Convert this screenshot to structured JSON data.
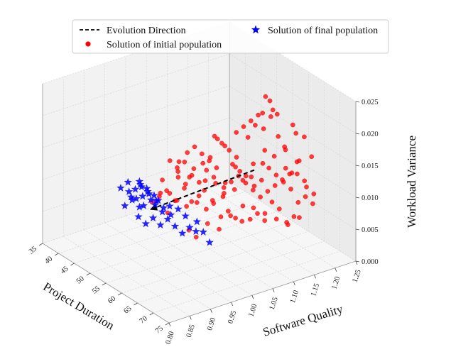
{
  "chart_data": {
    "type": "scatter3d",
    "title": "",
    "xlabel": "Project Duration",
    "ylabel": "Software Quality",
    "zlabel": "Workload Variance",
    "xlim": [
      35,
      75
    ],
    "ylim": [
      0.8,
      1.25
    ],
    "zlim": [
      0.0,
      0.025
    ],
    "xticks": [
      "35",
      "40",
      "45",
      "50",
      "55",
      "60",
      "65",
      "70",
      "75"
    ],
    "yticks": [
      "0.80",
      "0.85",
      "0.90",
      "0.95",
      "1.00",
      "1.05",
      "1.10",
      "1.15",
      "1.20",
      "1.25"
    ],
    "zticks": [
      "0.000",
      "0.005",
      "0.010",
      "0.015",
      "0.020",
      "0.025"
    ],
    "grid": true,
    "legend": {
      "placement": "top",
      "entries": [
        {
          "label": "Evolution Direction",
          "marker": "dashed-line",
          "color": "#000000"
        },
        {
          "label": "Solution of final population",
          "marker": "star",
          "color": "#0000ff"
        },
        {
          "label": "Solution of initial population",
          "marker": "circle",
          "color": "#ff0000"
        }
      ]
    },
    "evolution_direction": {
      "from": {
        "x": 56,
        "y": 1.15,
        "z": 0.0105
      },
      "to": {
        "x": 44,
        "y": 0.99,
        "z": 0.004
      }
    },
    "series": [
      {
        "name": "Solution of initial population",
        "marker": "circle",
        "color": "#ff0000",
        "points": [
          [
            54,
            1.12,
            0.011
          ],
          [
            55,
            1.13,
            0.009
          ],
          [
            56,
            1.15,
            0.008
          ],
          [
            57,
            1.14,
            0.012
          ],
          [
            58,
            1.16,
            0.014
          ],
          [
            53,
            1.1,
            0.007
          ],
          [
            52,
            1.08,
            0.006
          ],
          [
            51,
            1.07,
            0.009
          ],
          [
            50,
            1.05,
            0.011
          ],
          [
            49,
            1.04,
            0.005
          ],
          [
            48,
            1.02,
            0.006
          ],
          [
            47,
            1.01,
            0.004
          ],
          [
            46,
            1.0,
            0.007
          ],
          [
            55,
            1.18,
            0.016
          ],
          [
            56,
            1.19,
            0.018
          ],
          [
            57,
            1.2,
            0.015
          ],
          [
            58,
            1.21,
            0.013
          ],
          [
            59,
            1.22,
            0.017
          ],
          [
            60,
            1.21,
            0.01
          ],
          [
            61,
            1.22,
            0.012
          ],
          [
            60,
            1.18,
            0.005
          ],
          [
            61,
            1.19,
            0.003
          ],
          [
            62,
            1.2,
            0.004
          ],
          [
            59,
            1.17,
            0.006
          ],
          [
            58,
            1.16,
            0.003
          ],
          [
            57,
            1.15,
            0.004
          ],
          [
            56,
            1.14,
            0.003
          ],
          [
            55,
            1.13,
            0.005
          ],
          [
            54,
            1.12,
            0.003
          ],
          [
            53,
            1.11,
            0.004
          ],
          [
            52,
            1.1,
            0.003
          ],
          [
            51,
            1.09,
            0.005
          ],
          [
            50,
            1.08,
            0.004
          ],
          [
            49,
            1.07,
            0.006
          ],
          [
            48,
            1.06,
            0.005
          ],
          [
            47,
            1.05,
            0.007
          ],
          [
            46,
            1.04,
            0.005
          ],
          [
            45,
            1.03,
            0.006
          ],
          [
            44,
            1.02,
            0.008
          ],
          [
            50,
            1.1,
            0.015
          ],
          [
            51,
            1.11,
            0.014
          ],
          [
            52,
            1.12,
            0.013
          ],
          [
            53,
            1.13,
            0.012
          ],
          [
            54,
            1.15,
            0.015
          ],
          [
            55,
            1.16,
            0.017
          ],
          [
            56,
            1.17,
            0.019
          ],
          [
            57,
            1.18,
            0.021
          ],
          [
            58,
            1.19,
            0.019
          ],
          [
            59,
            1.2,
            0.014
          ],
          [
            60,
            1.22,
            0.016
          ],
          [
            62,
            1.23,
            0.008
          ],
          [
            63,
            1.22,
            0.007
          ],
          [
            62,
            1.21,
            0.006
          ],
          [
            61,
            1.2,
            0.008
          ],
          [
            60,
            1.19,
            0.009
          ],
          [
            59,
            1.18,
            0.01
          ],
          [
            58,
            1.17,
            0.011
          ],
          [
            57,
            1.16,
            0.009
          ],
          [
            56,
            1.13,
            0.01
          ],
          [
            55,
            1.11,
            0.008
          ],
          [
            54,
            1.09,
            0.007
          ],
          [
            53,
            1.08,
            0.009
          ],
          [
            52,
            1.06,
            0.008
          ],
          [
            51,
            1.05,
            0.006
          ],
          [
            50,
            1.03,
            0.009
          ],
          [
            49,
            1.02,
            0.01
          ],
          [
            48,
            1.0,
            0.008
          ],
          [
            47,
            0.99,
            0.007
          ],
          [
            46,
            0.98,
            0.006
          ],
          [
            49,
            1.0,
            0.013
          ],
          [
            50,
            1.01,
            0.012
          ],
          [
            51,
            1.02,
            0.013
          ],
          [
            52,
            1.03,
            0.011
          ],
          [
            53,
            1.04,
            0.01
          ],
          [
            54,
            1.05,
            0.012
          ],
          [
            55,
            1.06,
            0.011
          ],
          [
            56,
            1.08,
            0.01
          ],
          [
            57,
            1.09,
            0.013
          ],
          [
            58,
            1.1,
            0.012
          ],
          [
            59,
            1.12,
            0.011
          ],
          [
            60,
            1.14,
            0.013
          ],
          [
            61,
            1.16,
            0.014
          ],
          [
            62,
            1.18,
            0.012
          ],
          [
            63,
            1.2,
            0.011
          ],
          [
            64,
            1.21,
            0.01
          ],
          [
            60,
            1.24,
            0.015
          ],
          [
            61,
            1.25,
            0.012
          ],
          [
            59,
            1.23,
            0.011
          ],
          [
            58,
            1.22,
            0.009
          ],
          [
            57,
            1.21,
            0.008
          ],
          [
            56,
            1.2,
            0.007
          ],
          [
            55,
            1.19,
            0.006
          ],
          [
            54,
            1.18,
            0.005
          ],
          [
            53,
            1.17,
            0.006
          ],
          [
            52,
            1.16,
            0.007
          ],
          [
            51,
            1.15,
            0.008
          ],
          [
            50,
            1.14,
            0.007
          ],
          [
            49,
            1.13,
            0.006
          ],
          [
            48,
            1.12,
            0.009
          ],
          [
            47,
            1.11,
            0.01
          ],
          [
            46,
            1.1,
            0.011
          ],
          [
            45,
            1.09,
            0.012
          ],
          [
            44,
            1.06,
            0.01
          ],
          [
            45,
            1.05,
            0.009
          ],
          [
            46,
            1.07,
            0.008
          ],
          [
            55,
            1.0,
            0.004
          ],
          [
            56,
            1.01,
            0.003
          ],
          [
            57,
            1.03,
            0.005
          ],
          [
            58,
            1.05,
            0.004
          ],
          [
            59,
            1.07,
            0.006
          ],
          [
            60,
            1.09,
            0.005
          ],
          [
            61,
            1.11,
            0.007
          ],
          [
            62,
            1.13,
            0.006
          ],
          [
            63,
            1.15,
            0.005
          ],
          [
            64,
            1.17,
            0.004
          ],
          [
            65,
            1.19,
            0.005
          ],
          [
            64,
            1.23,
            0.006
          ],
          [
            63,
            1.24,
            0.007
          ],
          [
            53,
            1.2,
            0.02
          ],
          [
            54,
            1.21,
            0.018
          ],
          [
            52,
            1.19,
            0.017
          ],
          [
            51,
            1.18,
            0.016
          ],
          [
            50,
            1.17,
            0.015
          ],
          [
            49,
            1.16,
            0.014
          ],
          [
            48,
            1.14,
            0.012
          ],
          [
            47,
            1.13,
            0.013
          ],
          [
            46,
            1.12,
            0.01
          ],
          [
            45,
            1.11,
            0.009
          ],
          [
            44,
            1.08,
            0.011
          ]
        ]
      },
      {
        "name": "Solution of final population",
        "marker": "star",
        "color": "#0000ff",
        "points": [
          [
            42,
            0.98,
            0.008
          ],
          [
            43,
            0.99,
            0.007
          ],
          [
            44,
            1.0,
            0.006
          ],
          [
            43,
            1.0,
            0.005
          ],
          [
            42,
            0.99,
            0.004
          ],
          [
            41,
            0.98,
            0.005
          ],
          [
            40,
            0.97,
            0.006
          ],
          [
            41,
            0.99,
            0.007
          ],
          [
            42,
            1.0,
            0.006
          ],
          [
            43,
            1.01,
            0.004
          ],
          [
            44,
            1.02,
            0.003
          ],
          [
            45,
            1.03,
            0.004
          ],
          [
            44,
            1.01,
            0.005
          ],
          [
            43,
            0.98,
            0.006
          ],
          [
            42,
            0.97,
            0.007
          ],
          [
            41,
            0.96,
            0.008
          ],
          [
            40,
            0.95,
            0.007
          ],
          [
            41,
            0.97,
            0.005
          ],
          [
            42,
            0.98,
            0.004
          ],
          [
            43,
            0.97,
            0.003
          ],
          [
            44,
            0.98,
            0.002
          ],
          [
            45,
            0.99,
            0.003
          ],
          [
            46,
            1.0,
            0.002
          ],
          [
            47,
            1.01,
            0.003
          ],
          [
            48,
            1.02,
            0.002
          ],
          [
            49,
            1.03,
            0.001
          ],
          [
            50,
            1.04,
            0.002
          ],
          [
            51,
            1.05,
            0.003
          ],
          [
            50,
            1.03,
            0.004
          ],
          [
            49,
            1.02,
            0.005
          ],
          [
            48,
            1.01,
            0.004
          ],
          [
            47,
            1.0,
            0.005
          ],
          [
            46,
            0.99,
            0.006
          ],
          [
            45,
            0.98,
            0.007
          ],
          [
            44,
            0.97,
            0.008
          ],
          [
            55,
            1.05,
            0.001
          ],
          [
            52,
            1.04,
            0.002
          ],
          [
            53,
            1.05,
            0.002
          ],
          [
            42,
            0.96,
            0.006
          ],
          [
            40,
            0.96,
            0.004
          ]
        ]
      }
    ]
  }
}
